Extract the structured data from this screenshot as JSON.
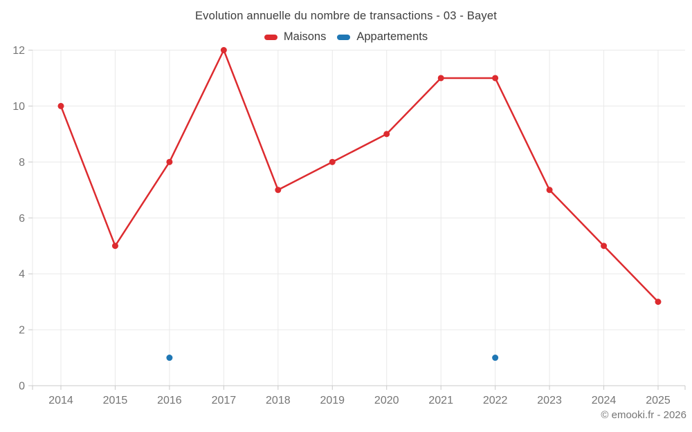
{
  "footer": {
    "copyright": "© emooki.fr - 2026"
  },
  "chart_data": {
    "type": "line",
    "title": "Evolution annuelle du nombre de transactions - 03 - Bayet",
    "categories": [
      "2014",
      "2015",
      "2016",
      "2017",
      "2018",
      "2019",
      "2020",
      "2021",
      "2022",
      "2023",
      "2024",
      "2025"
    ],
    "series": [
      {
        "name": "Maisons",
        "color": "#dd2b2f",
        "style": "line+markers",
        "values": [
          10,
          5,
          8,
          12,
          7,
          8,
          9,
          11,
          11,
          7,
          5,
          3
        ]
      },
      {
        "name": "Appartements",
        "color": "#1f77b4",
        "style": "markers",
        "values": [
          null,
          null,
          1,
          null,
          null,
          null,
          null,
          null,
          1,
          null,
          null,
          null
        ]
      }
    ],
    "xlabel": "",
    "ylabel": "",
    "ylim": [
      0,
      12
    ],
    "yticks": [
      0,
      2,
      4,
      6,
      8,
      10,
      12
    ],
    "grid": true,
    "legend_position": "top",
    "tick_color": "#757575",
    "grid_color": "#e9e9e9",
    "axis_line_color": "#c9c9c9"
  }
}
